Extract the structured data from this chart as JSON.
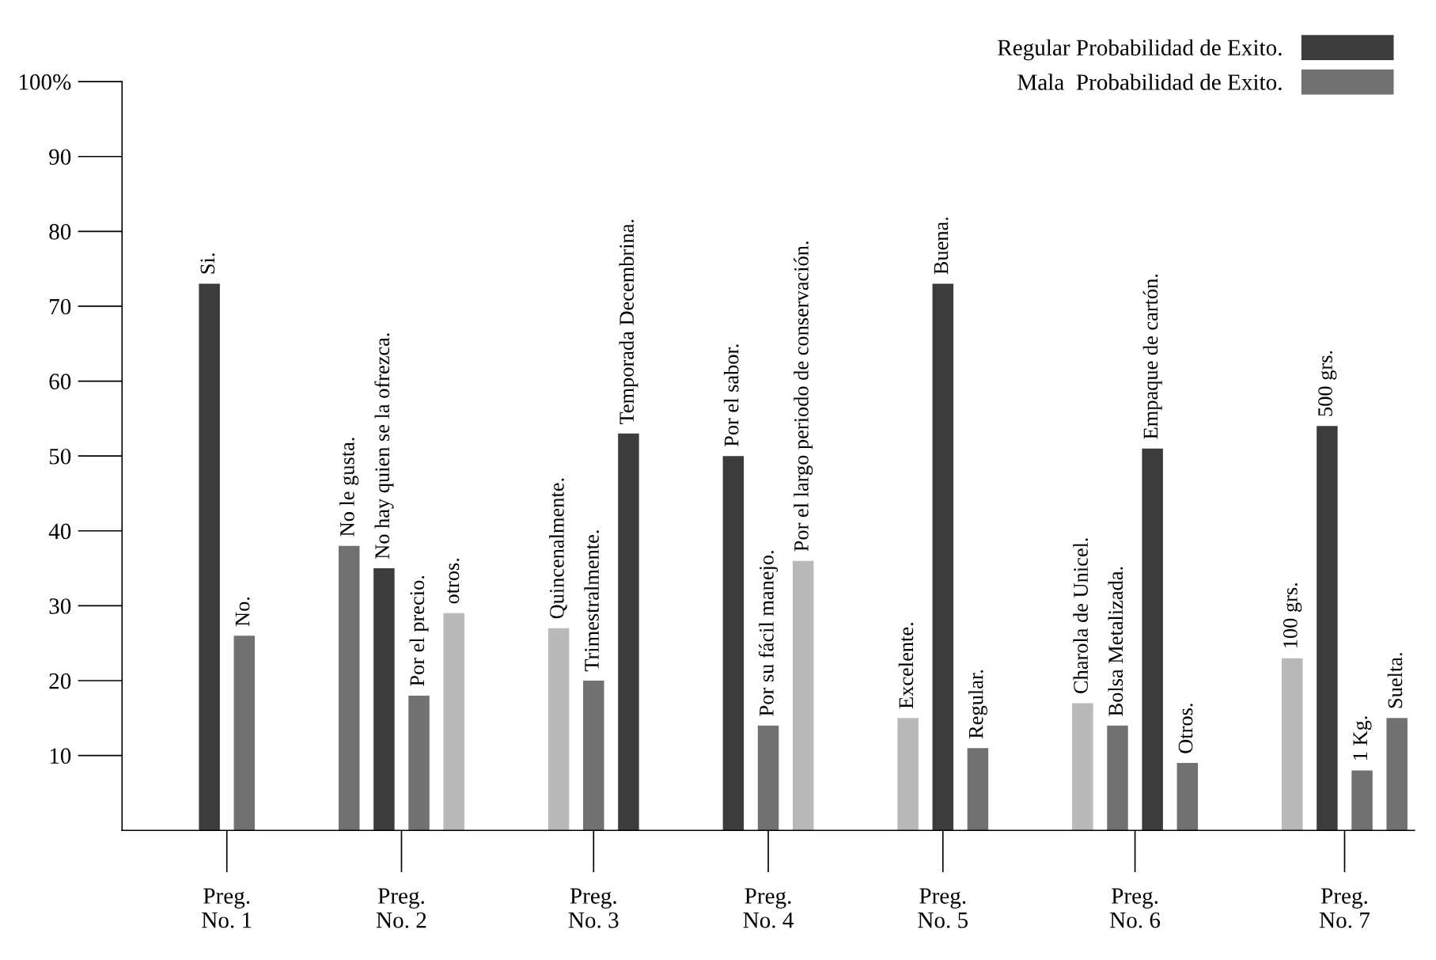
{
  "chart_data": {
    "type": "bar",
    "categories": [
      "Si.",
      "No.",
      null,
      null,
      "No le gusta.",
      "No hay quien se la ofrezca.",
      "Por el precio.",
      "otros.",
      null,
      null,
      "Quincenalmente.",
      "Trimestralmente.",
      "Temporada Decembrina.",
      null,
      null,
      "Por el sabor.",
      "Por su fácil manejo.",
      "Por el largo periodo de conservación.",
      null,
      null,
      "Excelente.",
      "Buena.",
      "Regular.",
      null,
      null,
      "Charola de Unicel.",
      "Bolsa Metalizada.",
      "Empaque de cartón.",
      "Otros.",
      null,
      null,
      "100 grs.",
      "500 grs.",
      "1 Kg.",
      "Suelta."
    ],
    "series": [
      {
        "name": "Regular Probabilidad de Exito.",
        "color": "#3c3c3c",
        "values": [
          73,
          null,
          null,
          null,
          null,
          35,
          null,
          null,
          null,
          null,
          null,
          null,
          53,
          null,
          null,
          50,
          null,
          null,
          null,
          null,
          null,
          73,
          null,
          null,
          null,
          null,
          null,
          51,
          null,
          null,
          null,
          null,
          54,
          null,
          null
        ]
      },
      {
        "name": "Mala  Probabilidad de Exito.",
        "color": "#717171",
        "values": [
          null,
          26,
          null,
          null,
          38,
          null,
          18,
          null,
          null,
          null,
          null,
          20,
          null,
          null,
          null,
          null,
          14,
          null,
          null,
          null,
          null,
          null,
          11,
          null,
          null,
          null,
          14,
          null,
          9,
          null,
          null,
          null,
          null,
          8,
          15
        ]
      },
      {
        "color": "#b9b9b9",
        "values": [
          null,
          null,
          null,
          null,
          null,
          null,
          null,
          29,
          null,
          null,
          27,
          null,
          null,
          null,
          null,
          null,
          null,
          36,
          null,
          null,
          15,
          null,
          null,
          null,
          null,
          17,
          null,
          null,
          null,
          null,
          null,
          23,
          null,
          null,
          null
        ]
      }
    ],
    "annotations": [
      "Preg.\nNo. 1",
      "Preg.\nNo. 2",
      "Preg.\nNo. 3",
      "Preg.\nNo. 4",
      "Preg.\nNo. 5",
      "Preg.\nNo. 6",
      "Preg.\nNo. 7"
    ],
    "ylim": [
      0,
      100
    ],
    "yticks": [
      10,
      20,
      30,
      40,
      50,
      60,
      70,
      80,
      90,
      {
        "value": 100,
        "label": "100%"
      }
    ],
    "grid": false,
    "legend": "top right"
  }
}
